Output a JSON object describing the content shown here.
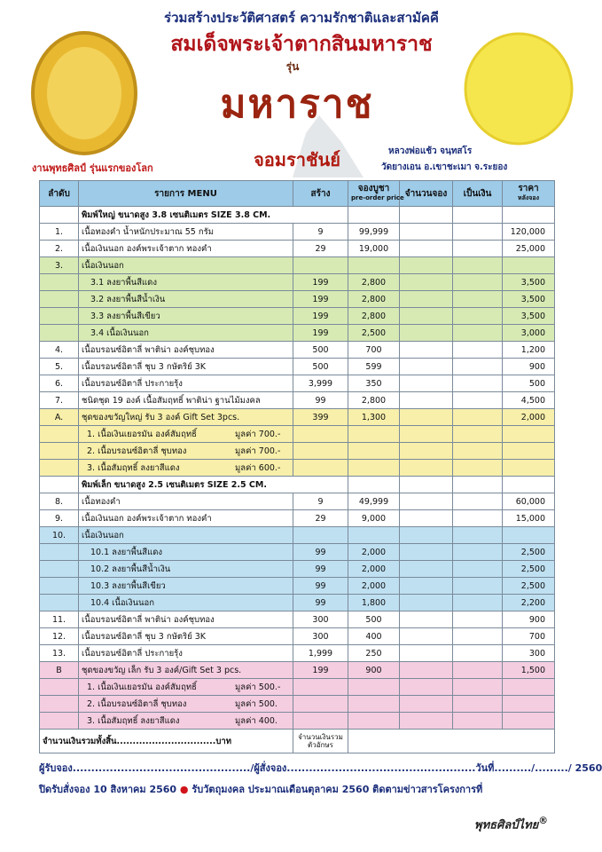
{
  "header": {
    "tagline": "ร่วมสร้างประวัติศาสตร์ ความรักชาติและสามัคคี",
    "title": "สมเด็จพระเจ้าตากสินมหาราช",
    "series_word": "รุ่น",
    "series_name": "มหาราช",
    "series_sub": "จอมราชันย์",
    "left_note": "งานพุทธศิลป์ รุ่นแรกของโลก",
    "monk": "หลวงพ่อแช้ว จนฺทสโร",
    "temple": "วัดยางเอน อ.เขาชะเมา จ.ระยอง"
  },
  "table": {
    "columns": [
      "ลำดับ",
      "รายการ MENU",
      "สร้าง",
      [
        "จองบูชา",
        "pre-order price"
      ],
      "จำนวนจอง",
      "เป็นเงิน",
      [
        "ราคา",
        "หลังจอง"
      ]
    ],
    "rows": [
      {
        "section": "พิมพ์ใหญ่ ขนาดสูง 3.8 เซนติเมตร SIZE 3.8 CM."
      },
      {
        "no": "1.",
        "item": "เนื้อทองคำ น้ำหนักประมาณ 55 กรัม",
        "made": "9",
        "preorder": "99,999",
        "after": "120,000"
      },
      {
        "no": "2.",
        "item": "เนื้อเงินนอก องค์พระเจ้าตาก ทองคำ",
        "made": "29",
        "preorder": "19,000",
        "after": "25,000"
      },
      {
        "no": "3.",
        "item": "เนื้อเงินนอก"
      },
      {
        "item": "3.1 ลงยาพื้นสีแดง",
        "made": "199",
        "preorder": "2,800",
        "after": "3,500"
      },
      {
        "item": "3.2 ลงยาพื้นสีน้ำเงิน",
        "made": "199",
        "preorder": "2,800",
        "after": "3,500"
      },
      {
        "item": "3.3 ลงยาพื้นสีเขียว",
        "made": "199",
        "preorder": "2,800",
        "after": "3,500"
      },
      {
        "item": "3.4 เนื้อเงินนอก",
        "made": "199",
        "preorder": "2,500",
        "after": "3,000"
      },
      {
        "no": "4.",
        "item": "เนื้อบรอนซ์อิตาลี่ พาติน่า องค์ชุบทอง",
        "made": "500",
        "preorder": "700",
        "after": "1,200"
      },
      {
        "no": "5.",
        "item": "เนื้อบรอนซ์อิตาลี่ ชุบ 3 กษัตริย์ 3K",
        "made": "500",
        "preorder": "599",
        "after": "900"
      },
      {
        "no": "6.",
        "item": "เนื้อบรอนซ์อิตาลี่ ประกายรุ้ง",
        "made": "3,999",
        "preorder": "350",
        "after": "500"
      },
      {
        "no": "7.",
        "item": "ชนิดชุด 19 องค์ เนื้อสัมฤทธิ์ พาติน่า ฐานไม้มงคล",
        "made": "99",
        "preorder": "2,800",
        "after": "4,500"
      },
      {
        "no": "A.",
        "item": "ชุดของขวัญใหญ่ รับ 3 องค์ Gift Set 3pcs.",
        "made": "399",
        "preorder": "1,300",
        "after": "2,000"
      },
      {
        "item": "1. เนื้อเงินเยอรมัน องค์สัมฤทธิ์",
        "worth": "มูลค่า 700.-"
      },
      {
        "item": "2. เนื้อบรอนซ์อิตาลี่ ชุบทอง",
        "worth": "มูลค่า 700.-"
      },
      {
        "item": "3. เนื้อสัมฤทธิ์ ลงยาสีแดง",
        "worth": "มูลค่า 600.-"
      },
      {
        "section": "พิมพ์เล็ก ขนาดสูง 2.5 เซนติเมตร SIZE 2.5 CM."
      },
      {
        "no": "8.",
        "item": "เนื้อทองคำ",
        "made": "9",
        "preorder": "49,999",
        "after": "60,000"
      },
      {
        "no": "9.",
        "item": "เนื้อเงินนอก องค์พระเจ้าตาก ทองคำ",
        "made": "29",
        "preorder": "9,000",
        "after": "15,000"
      },
      {
        "no": "10.",
        "item": "เนื้อเงินนอก"
      },
      {
        "item": "10.1 ลงยาพื้นสีแดง",
        "made": "99",
        "preorder": "2,000",
        "after": "2,500"
      },
      {
        "item": "10.2 ลงยาพื้นสีน้ำเงิน",
        "made": "99",
        "preorder": "2,000",
        "after": "2,500"
      },
      {
        "item": "10.3 ลงยาพื้นสีเขียว",
        "made": "99",
        "preorder": "2,000",
        "after": "2,500"
      },
      {
        "item": "10.4 เนื้อเงินนอก",
        "made": "99",
        "preorder": "1,800",
        "after": "2,200"
      },
      {
        "no": "11.",
        "item": "เนื้อบรอนซ์อิตาลี่ พาติน่า องค์ชุบทอง",
        "made": "300",
        "preorder": "500",
        "after": "900"
      },
      {
        "no": "12.",
        "item": "เนื้อบรอนซ์อิตาลี่ ชุบ 3 กษัตริย์ 3K",
        "made": "300",
        "preorder": "400",
        "after": "700"
      },
      {
        "no": "13.",
        "item": "เนื้อบรอนซ์อิตาลี่ ประกายรุ้ง",
        "made": "1,999",
        "preorder": "250",
        "after": "300"
      },
      {
        "no": "B",
        "item": "ชุดของขวัญ เล็ก รับ 3 องค์/Gift Set 3 pcs.",
        "made": "199",
        "preorder": "900",
        "after": "1,500"
      },
      {
        "item": "1. เนื้อเงินเยอรมัน องค์สัมฤทธิ์",
        "worth": "มูลค่า 500.-"
      },
      {
        "item": "2. เนื้อบรอนซ์อิตาลี่ ชุบทอง",
        "worth": "มูลค่า 500."
      },
      {
        "item": "3. เนื้อสัมฤทธิ์ ลงยาสีแดง",
        "worth": "มูลค่า 400."
      }
    ],
    "total": "จำนวนเงินรวมทั้งสิ้น...............................บาท",
    "total_words": [
      "จำนวนเงินรวม",
      "ตัวอักษร"
    ]
  },
  "footer": {
    "signature_line": "ผู้รับจอง................................................/ผู้สั่งจอง...................................................วันที่........../........./ 2560",
    "deadline": "ปิดรับสั่งจอง 10 สิงหาคม 2560",
    "receive": "รับวัตถุมงคล ประมาณเดือนตุลาคม 2560 ติดตามข่าวสารโครงการที่",
    "brand": "พุทธศิลป์ไทย"
  }
}
